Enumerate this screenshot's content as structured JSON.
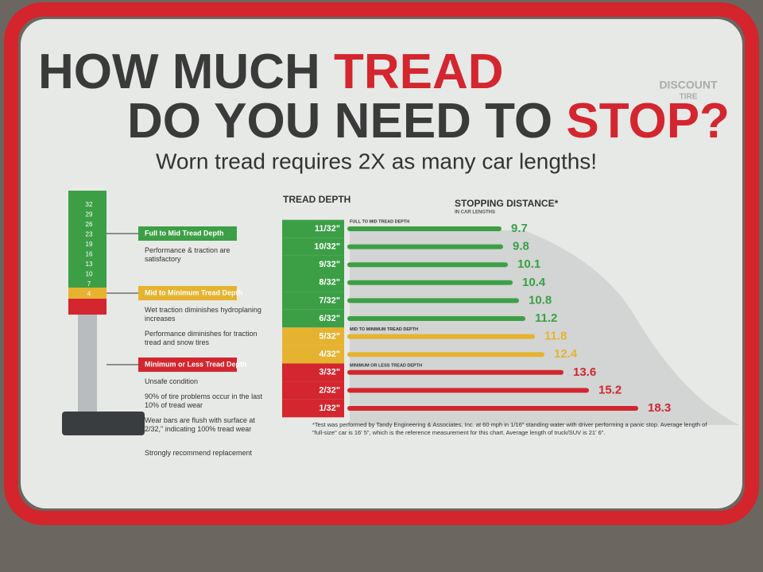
{
  "chart_data": {
    "type": "bar",
    "title": {
      "line1": [
        "HOW MUCH",
        "TREAD"
      ],
      "line2": [
        "DO YOU NEED TO",
        "STOP?"
      ]
    },
    "subtitle": "Worn tread requires 2X as many car lengths!",
    "brand": [
      "DISCOUNT",
      "TIRE"
    ],
    "category_header": "TREAD DEPTH",
    "value_header": "STOPPING DISTANCE*",
    "value_unit": "IN CAR LENGTHS",
    "categories": [
      "11/32\"",
      "10/32\"",
      "9/32\"",
      "8/32\"",
      "7/32\"",
      "6/32\"",
      "5/32\"",
      "4/32\"",
      "3/32\"",
      "2/32\"",
      "1/32\""
    ],
    "series": [
      {
        "name": "Full to Mid Tread Depth",
        "band_label": "FULL TO MID TREAD DEPTH",
        "color": "#3c9f46",
        "values": [
          9.7,
          9.8,
          10.1,
          10.4,
          10.8,
          11.2,
          null,
          null,
          null,
          null,
          null
        ],
        "notes": [
          "Performance & traction are satisfactory"
        ]
      },
      {
        "name": "Mid to Minimum Tread Depth",
        "band_label": "MID TO MINIMUM TREAD DEPTH",
        "color": "#e6b330",
        "values": [
          null,
          null,
          null,
          null,
          null,
          null,
          11.8,
          12.4,
          null,
          null,
          null
        ],
        "notes": [
          "Wet traction diminishes hydroplaning increases",
          "Performance diminishes for traction tread and snow tires"
        ]
      },
      {
        "name": "Minimum or Less Tread Depth",
        "band_label": "MINIMUM OR LESS TREAD DEPTH",
        "color": "#d3262f",
        "values": [
          null,
          null,
          null,
          null,
          null,
          null,
          null,
          null,
          13.6,
          15.2,
          18.3
        ],
        "notes": [
          "Unsafe condition",
          "90% of tire problems occur in the last 10% of tread wear",
          "Wear bars are flush with surface at 2/32,\" indicating 100% tread wear",
          "Strongly recommend replacement"
        ]
      }
    ],
    "gauge_labels": [
      32,
      29,
      26,
      23,
      19,
      16,
      13,
      10,
      7,
      4
    ],
    "footnote": "*Test was performed by Tandy Engineering & Associates, Inc. at 60 mph in 1/16\" standing water with driver performing a panic stop. Average length of \"full-size\" car is 16' 5\", which is the reference measurement for this chart. Average length of truck/SUV is 21' 6\"."
  }
}
